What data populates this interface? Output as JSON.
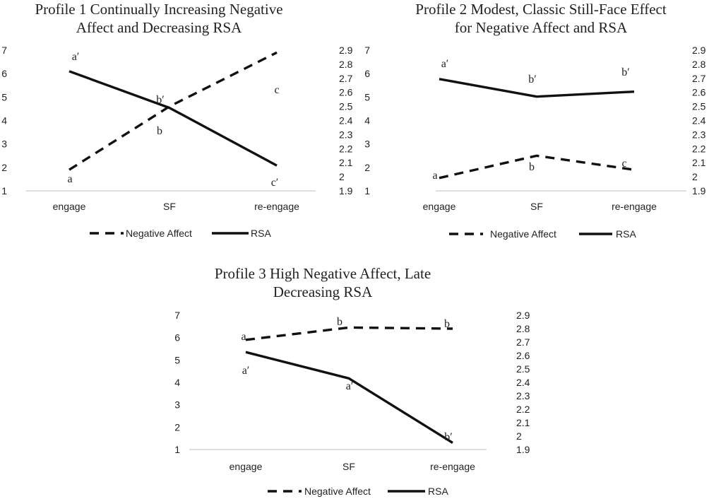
{
  "chart_data": [
    {
      "type": "line",
      "title_lines": [
        "Profile 1 Continually Increasing Negative",
        "Affect and Decreasing RSA"
      ],
      "categories": [
        "engage",
        "SF",
        "re-engage"
      ],
      "left_axis": {
        "ylim": [
          1,
          7
        ],
        "ticks": [
          "1",
          "2",
          "3",
          "4",
          "5",
          "6",
          "7"
        ]
      },
      "right_axis": {
        "ylim": [
          1.9,
          2.9
        ],
        "ticks": [
          "1.9",
          "2",
          "2.1",
          "2.2",
          "2.3",
          "2.4",
          "2.5",
          "2.6",
          "2.7",
          "2.8",
          "2.9"
        ]
      },
      "series": [
        {
          "name": "Negative Affect",
          "axis": "left",
          "style": "dashed",
          "values": [
            1.9,
            4.6,
            6.9
          ],
          "labels": [
            "a",
            "b",
            "c"
          ]
        },
        {
          "name": "RSA",
          "axis": "right",
          "style": "solid",
          "values": [
            2.75,
            2.49,
            2.08
          ],
          "labels": [
            "a′",
            "b′",
            "c′"
          ]
        }
      ],
      "legend": [
        "Negative Affect",
        "RSA"
      ]
    },
    {
      "type": "line",
      "title_lines": [
        "Profile 2 Modest, Classic Still-Face Effect",
        "for Negative Affect and RSA"
      ],
      "categories": [
        "engage",
        "SF",
        "re-engage"
      ],
      "left_axis": {
        "ylim": [
          1,
          7
        ],
        "ticks": [
          "1",
          "2",
          "3",
          "4",
          "5",
          "6",
          "7"
        ]
      },
      "right_axis": {
        "ylim": [
          1.9,
          2.9
        ],
        "ticks": [
          "1.9",
          "2",
          "2.1",
          "2.2",
          "2.3",
          "2.4",
          "2.5",
          "2.6",
          "2.7",
          "2.8",
          "2.9"
        ]
      },
      "series": [
        {
          "name": "Negative Affect",
          "axis": "left",
          "style": "dashed",
          "values": [
            1.55,
            2.5,
            1.9
          ],
          "labels": [
            "a",
            "b",
            "c"
          ]
        },
        {
          "name": "RSA",
          "axis": "right",
          "style": "solid",
          "values": [
            2.695,
            2.57,
            2.605
          ],
          "labels": [
            "a′",
            "b′",
            "b′"
          ]
        }
      ],
      "legend": [
        "Negative Affect",
        "RSA"
      ]
    },
    {
      "type": "line",
      "title_lines": [
        "Profile 3 High Negative Affect, Late",
        "Decreasing RSA"
      ],
      "categories": [
        "engage",
        "SF",
        "re-engage"
      ],
      "left_axis": {
        "ylim": [
          1,
          7
        ],
        "ticks": [
          "1",
          "2",
          "3",
          "4",
          "5",
          "6",
          "7"
        ]
      },
      "right_axis": {
        "ylim": [
          1.9,
          2.9
        ],
        "ticks": [
          "1.9",
          "2",
          "2.1",
          "2.2",
          "2.3",
          "2.4",
          "2.5",
          "2.6",
          "2.7",
          "2.8",
          "2.9"
        ]
      },
      "series": [
        {
          "name": "Negative Affect",
          "axis": "left",
          "style": "dashed",
          "values": [
            5.9,
            6.45,
            6.4
          ],
          "labels": [
            "a",
            "b",
            "b"
          ]
        },
        {
          "name": "RSA",
          "axis": "right",
          "style": "solid",
          "values": [
            2.625,
            2.43,
            1.95
          ],
          "labels": [
            "a′",
            "a′",
            "b′"
          ]
        }
      ],
      "legend": [
        "Negative Affect",
        "RSA"
      ]
    }
  ]
}
